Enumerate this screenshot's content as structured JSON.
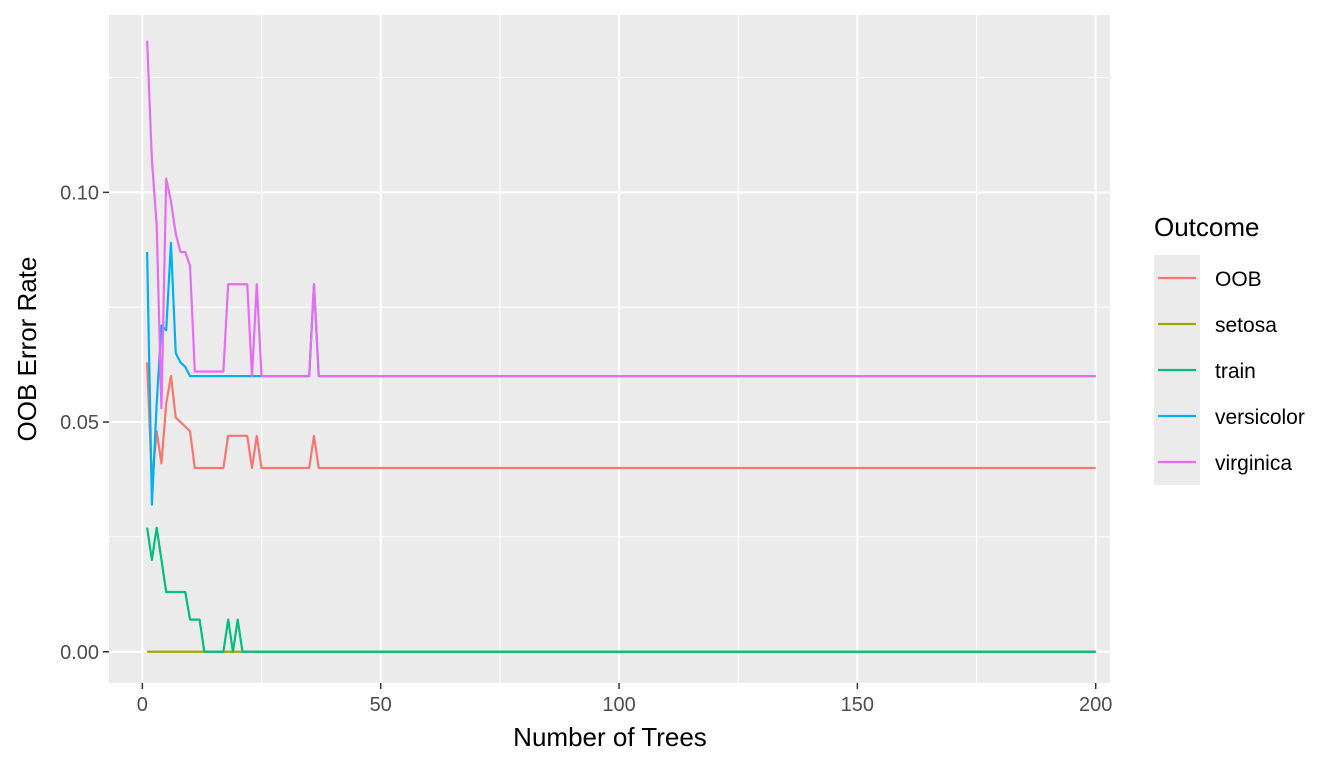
{
  "chart_data": {
    "type": "line",
    "xlabel": "Number of Trees",
    "ylabel": "OOB Error Rate",
    "xlim": [
      -7,
      203
    ],
    "ylim": [
      -0.0068,
      0.1386
    ],
    "x_ticks": [
      0,
      50,
      100,
      150,
      200
    ],
    "x_tick_labels": [
      "0",
      "50",
      "100",
      "150",
      "200"
    ],
    "y_ticks": [
      0.0,
      0.05,
      0.1
    ],
    "y_tick_labels": [
      "0.00",
      "0.05",
      "0.10"
    ],
    "grid": true,
    "background": "#ebebeb",
    "legend": {
      "title": "Outcome",
      "position": "right"
    },
    "series": [
      {
        "name": "OOB",
        "color": "#f8766d",
        "points": [
          [
            1,
            0.063
          ],
          [
            2,
            0.037
          ],
          [
            3,
            0.048
          ],
          [
            4,
            0.041
          ],
          [
            5,
            0.054
          ],
          [
            6,
            0.06
          ],
          [
            7,
            0.051
          ],
          [
            8,
            0.05
          ],
          [
            9,
            0.049
          ],
          [
            10,
            0.048
          ],
          [
            11,
            0.04
          ],
          [
            17,
            0.04
          ],
          [
            18,
            0.047
          ],
          [
            22,
            0.047
          ],
          [
            23,
            0.04
          ],
          [
            24,
            0.047
          ],
          [
            25,
            0.04
          ],
          [
            35,
            0.04
          ],
          [
            36,
            0.047
          ],
          [
            37,
            0.04
          ],
          [
            200,
            0.04
          ]
        ]
      },
      {
        "name": "setosa",
        "color": "#a3a500",
        "points": [
          [
            1,
            0.0
          ],
          [
            200,
            0.0
          ]
        ]
      },
      {
        "name": "train",
        "color": "#00bf7d",
        "points": [
          [
            1,
            0.027
          ],
          [
            2,
            0.02
          ],
          [
            3,
            0.027
          ],
          [
            4,
            0.02
          ],
          [
            5,
            0.013
          ],
          [
            9,
            0.013
          ],
          [
            10,
            0.007
          ],
          [
            12,
            0.007
          ],
          [
            13,
            0.0
          ],
          [
            17,
            0.0
          ],
          [
            18,
            0.007
          ],
          [
            19,
            0.0
          ],
          [
            20,
            0.007
          ],
          [
            21,
            0.0
          ],
          [
            200,
            0.0
          ]
        ]
      },
      {
        "name": "versicolor",
        "color": "#00b0f6",
        "points": [
          [
            1,
            0.087
          ],
          [
            2,
            0.032
          ],
          [
            3,
            0.054
          ],
          [
            4,
            0.071
          ],
          [
            5,
            0.07
          ],
          [
            6,
            0.089
          ],
          [
            7,
            0.065
          ],
          [
            8,
            0.063
          ],
          [
            9,
            0.062
          ],
          [
            10,
            0.06
          ],
          [
            35,
            0.06
          ],
          [
            36,
            0.08
          ],
          [
            37,
            0.06
          ],
          [
            200,
            0.06
          ]
        ]
      },
      {
        "name": "virginica",
        "color": "#e76bf3",
        "points": [
          [
            1,
            0.133
          ],
          [
            2,
            0.107
          ],
          [
            3,
            0.093
          ],
          [
            4,
            0.053
          ],
          [
            5,
            0.103
          ],
          [
            6,
            0.098
          ],
          [
            7,
            0.091
          ],
          [
            8,
            0.087
          ],
          [
            9,
            0.087
          ],
          [
            10,
            0.084
          ],
          [
            11,
            0.061
          ],
          [
            17,
            0.061
          ],
          [
            18,
            0.08
          ],
          [
            22,
            0.08
          ],
          [
            23,
            0.06
          ],
          [
            24,
            0.08
          ],
          [
            25,
            0.06
          ],
          [
            35,
            0.06
          ],
          [
            36,
            0.08
          ],
          [
            37,
            0.06
          ],
          [
            200,
            0.06
          ]
        ]
      }
    ]
  }
}
